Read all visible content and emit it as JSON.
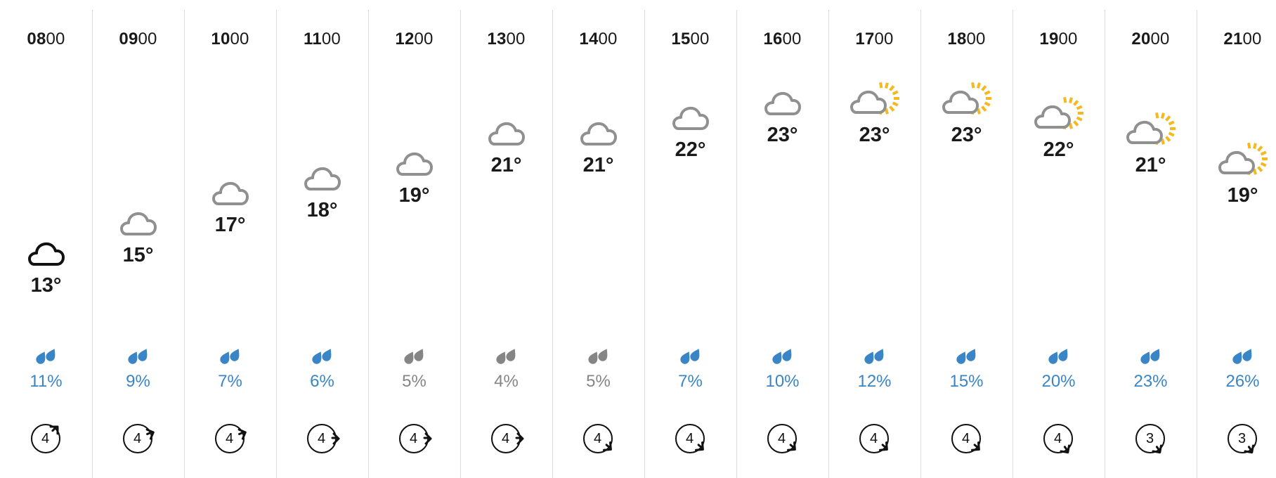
{
  "colors": {
    "rain_likely": "#3a85c6",
    "rain_low": "#858585",
    "cloud_first": "#111111",
    "cloud": "#909090",
    "sun": "#f5b820",
    "divider": "#dcdcdc"
  },
  "hours": [
    {
      "hh": "08",
      "mm": "00",
      "temp": "13°",
      "rain": "11%",
      "rain_level": "likely",
      "icon": "cloud-icon",
      "wind": "4",
      "wind_arrow": "northeast",
      "temp_level": 13
    },
    {
      "hh": "09",
      "mm": "00",
      "temp": "15°",
      "rain": "9%",
      "rain_level": "likely",
      "icon": "cloud-icon",
      "wind": "4",
      "wind_arrow": "east-northeast",
      "temp_level": 15
    },
    {
      "hh": "10",
      "mm": "00",
      "temp": "17°",
      "rain": "7%",
      "rain_level": "likely",
      "icon": "cloud-icon",
      "wind": "4",
      "wind_arrow": "east-northeast",
      "temp_level": 17
    },
    {
      "hh": "11",
      "mm": "00",
      "temp": "18°",
      "rain": "6%",
      "rain_level": "likely",
      "icon": "cloud-icon",
      "wind": "4",
      "wind_arrow": "east",
      "temp_level": 18
    },
    {
      "hh": "12",
      "mm": "00",
      "temp": "19°",
      "rain": "5%",
      "rain_level": "low",
      "icon": "cloud-icon",
      "wind": "4",
      "wind_arrow": "east",
      "temp_level": 19
    },
    {
      "hh": "13",
      "mm": "00",
      "temp": "21°",
      "rain": "4%",
      "rain_level": "low",
      "icon": "cloud-icon",
      "wind": "4",
      "wind_arrow": "east",
      "temp_level": 21
    },
    {
      "hh": "14",
      "mm": "00",
      "temp": "21°",
      "rain": "5%",
      "rain_level": "low",
      "icon": "cloud-icon",
      "wind": "4",
      "wind_arrow": "southeast",
      "temp_level": 21
    },
    {
      "hh": "15",
      "mm": "00",
      "temp": "22°",
      "rain": "7%",
      "rain_level": "likely",
      "icon": "cloud-icon",
      "wind": "4",
      "wind_arrow": "southeast",
      "temp_level": 22
    },
    {
      "hh": "16",
      "mm": "00",
      "temp": "23°",
      "rain": "10%",
      "rain_level": "likely",
      "icon": "cloud-icon",
      "wind": "4",
      "wind_arrow": "southeast",
      "temp_level": 23
    },
    {
      "hh": "17",
      "mm": "00",
      "temp": "23°",
      "rain": "12%",
      "rain_level": "likely",
      "icon": "sun-cloud-icon",
      "wind": "4",
      "wind_arrow": "southeast",
      "temp_level": 23
    },
    {
      "hh": "18",
      "mm": "00",
      "temp": "23°",
      "rain": "15%",
      "rain_level": "likely",
      "icon": "sun-cloud-icon",
      "wind": "4",
      "wind_arrow": "southeast",
      "temp_level": 23
    },
    {
      "hh": "19",
      "mm": "00",
      "temp": "22°",
      "rain": "20%",
      "rain_level": "likely",
      "icon": "sun-cloud-icon",
      "wind": "4",
      "wind_arrow": "south-southeast",
      "temp_level": 22
    },
    {
      "hh": "20",
      "mm": "00",
      "temp": "21°",
      "rain": "23%",
      "rain_level": "likely",
      "icon": "sun-cloud-icon",
      "wind": "3",
      "wind_arrow": "south-southeast",
      "temp_level": 21
    },
    {
      "hh": "21",
      "mm": "00",
      "temp": "19°",
      "rain": "26%",
      "rain_level": "likely",
      "icon": "sun-cloud-icon",
      "wind": "3",
      "wind_arrow": "south-southeast",
      "temp_level": 19
    }
  ]
}
